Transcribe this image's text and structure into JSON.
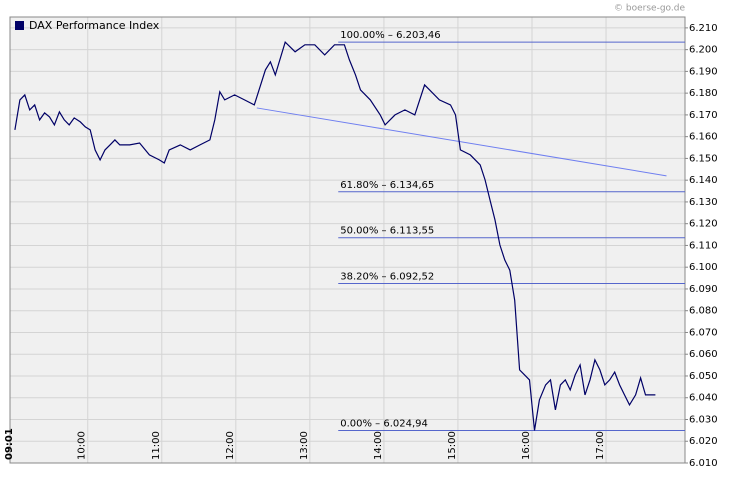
{
  "chart_data": {
    "type": "line",
    "title": "DAX Performance Index",
    "source": "© boerse-go.de",
    "x": [
      "09:01",
      "09:05",
      "09:09",
      "09:13",
      "09:17",
      "09:21",
      "09:25",
      "09:29",
      "09:33",
      "09:37",
      "09:41",
      "09:45",
      "09:49",
      "09:54",
      "09:58",
      "10:02",
      "10:06",
      "10:10",
      "10:14",
      "10:18",
      "10:22",
      "10:26",
      "10:34",
      "10:42",
      "10:50",
      "10:58",
      "11:02",
      "11:06",
      "11:15",
      "11:23",
      "11:31",
      "11:39",
      "11:43",
      "11:47",
      "11:51",
      "11:59",
      "12:07",
      "12:15",
      "12:24",
      "12:28",
      "12:32",
      "12:40",
      "12:48",
      "12:56",
      "13:04",
      "13:12",
      "13:20",
      "13:28",
      "13:32",
      "13:37",
      "13:41",
      "13:49",
      "13:57",
      "14:01",
      "14:09",
      "14:17",
      "14:25",
      "14:33",
      "14:37",
      "14:45",
      "14:54",
      "14:58",
      "15:02",
      "15:10",
      "15:18",
      "15:22",
      "15:26",
      "15:30",
      "15:34",
      "15:38",
      "15:42",
      "15:46",
      "15:50",
      "15:54",
      "15:58",
      "16:02",
      "16:06",
      "16:11",
      "16:15",
      "16:19",
      "16:23",
      "16:27",
      "16:31",
      "16:35",
      "16:39",
      "16:43",
      "16:47",
      "16:51",
      "16:55",
      "16:59",
      "17:03",
      "17:07",
      "17:11",
      "17:15",
      "17:19",
      "17:24",
      "17:28",
      "17:32",
      "17:40"
    ],
    "series": [
      {
        "name": "DAX Performance Index",
        "color": "#000066",
        "values": [
          6163.1,
          6176.9,
          6179.2,
          6172.3,
          6174.6,
          6167.7,
          6170.9,
          6169.1,
          6165.4,
          6171.4,
          6167.7,
          6165.4,
          6168.6,
          6166.8,
          6164.5,
          6163.1,
          6153.9,
          6149.3,
          6153.9,
          6156.2,
          6158.5,
          6156.2,
          6156.2,
          6157.1,
          6151.6,
          6149.3,
          6147.9,
          6153.9,
          6156.2,
          6153.9,
          6156.2,
          6158.5,
          6167.7,
          6180.6,
          6176.9,
          6179.2,
          6176.9,
          6174.6,
          6190.7,
          6194.4,
          6188.4,
          6203.46,
          6199.0,
          6202.2,
          6202.2,
          6197.6,
          6202.2,
          6202.2,
          6195.3,
          6188.4,
          6181.5,
          6176.9,
          6170.0,
          6165.4,
          6170.0,
          6172.3,
          6170.0,
          6183.8,
          6181.5,
          6176.9,
          6174.6,
          6170.0,
          6153.9,
          6151.6,
          6147.0,
          6140.1,
          6130.9,
          6121.7,
          6110.2,
          6103.3,
          6098.6,
          6084.8,
          6052.8,
          6050.5,
          6048.2,
          6024.94,
          6039.0,
          6045.9,
          6048.2,
          6034.4,
          6045.9,
          6048.2,
          6043.6,
          6050.5,
          6055.1,
          6041.3,
          6048.2,
          6057.4,
          6052.8,
          6045.9,
          6048.2,
          6051.8,
          6045.9,
          6041.3,
          6036.7,
          6041.3,
          6049.1,
          6041.3,
          6041.3
        ]
      }
    ],
    "trendline": {
      "color": "#6f7ff0",
      "x": [
        "12:17",
        "17:49"
      ],
      "values": [
        6173.2,
        6142.0
      ]
    },
    "annotations": [
      {
        "text": "100.00% – 6.203,46",
        "value": 6203.46,
        "x": "13:23"
      },
      {
        "text": "61.80% – 6.134,65",
        "value": 6134.65,
        "x": "13:23"
      },
      {
        "text": "50.00% – 6.113,55",
        "value": 6113.55,
        "x": "13:23"
      },
      {
        "text": "38.20% – 6.092,52",
        "value": 6092.52,
        "x": "13:23"
      },
      {
        "text": "0.00% – 6.024,94",
        "value": 6024.94,
        "x": "13:23"
      }
    ],
    "annotation_color": "#5566cc",
    "xlim": [
      "08:57",
      "18:04"
    ],
    "xticks": [
      "09:01",
      "10:00",
      "11:00",
      "12:00",
      "13:00",
      "14:00",
      "15:00",
      "16:00",
      "17:00"
    ],
    "ylim": [
      6010,
      6215
    ],
    "yticks": [
      {
        "value": 6010,
        "label": "6.010"
      },
      {
        "value": 6020,
        "label": "6.020"
      },
      {
        "value": 6030,
        "label": "6.030"
      },
      {
        "value": 6040,
        "label": "6.040"
      },
      {
        "value": 6050,
        "label": "6.050"
      },
      {
        "value": 6060,
        "label": "6.060"
      },
      {
        "value": 6070,
        "label": "6.070"
      },
      {
        "value": 6080,
        "label": "6.080"
      },
      {
        "value": 6090,
        "label": "6.090"
      },
      {
        "value": 6100,
        "label": "6.100"
      },
      {
        "value": 6110,
        "label": "6.110"
      },
      {
        "value": 6120,
        "label": "6.120"
      },
      {
        "value": 6130,
        "label": "6.130"
      },
      {
        "value": 6140,
        "label": "6.140"
      },
      {
        "value": 6150,
        "label": "6.150"
      },
      {
        "value": 6160,
        "label": "6.160"
      },
      {
        "value": 6170,
        "label": "6.170"
      },
      {
        "value": 6180,
        "label": "6.180"
      },
      {
        "value": 6190,
        "label": "6.190"
      },
      {
        "value": 6200,
        "label": "6.200"
      },
      {
        "value": 6210,
        "label": "6.210"
      }
    ],
    "grid": true
  }
}
